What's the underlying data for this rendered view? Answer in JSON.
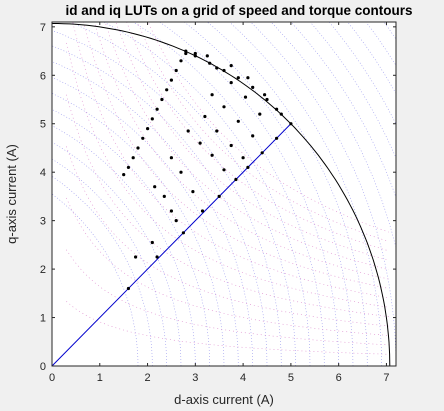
{
  "chart_data": {
    "type": "scatter",
    "title": "id and iq LUTs on a grid of speed and torque contours",
    "xlabel": "d-axis current (A)",
    "ylabel": "q-axis current (A)",
    "xlim": [
      0,
      7.2
    ],
    "ylim": [
      0,
      7.1
    ],
    "xticks": [
      "0",
      "1",
      "2",
      "3",
      "4",
      "5",
      "6",
      "7"
    ],
    "yticks": [
      "0",
      "1",
      "2",
      "3",
      "4",
      "5",
      "6",
      "7"
    ],
    "grid": false,
    "legend": "none",
    "current_limit_radius": 7.07,
    "mtpa_line": {
      "x": [
        0,
        5.0
      ],
      "y": [
        0,
        5.0
      ]
    },
    "speed_contour_center": [
      -2.6,
      0
    ],
    "lut_points": [
      [
        1.6,
        1.6
      ],
      [
        1.75,
        2.25
      ],
      [
        2.1,
        2.55
      ],
      [
        2.2,
        2.25
      ],
      [
        2.75,
        2.75
      ],
      [
        2.6,
        3.0
      ],
      [
        2.5,
        3.2
      ],
      [
        2.35,
        3.5
      ],
      [
        2.15,
        3.7
      ],
      [
        3.5,
        3.5
      ],
      [
        3.15,
        3.2
      ],
      [
        2.95,
        3.6
      ],
      [
        2.7,
        4.0
      ],
      [
        2.5,
        4.3
      ],
      [
        3.85,
        3.85
      ],
      [
        3.6,
        4.05
      ],
      [
        3.35,
        4.35
      ],
      [
        3.1,
        4.6
      ],
      [
        2.85,
        4.85
      ],
      [
        4.1,
        4.1
      ],
      [
        4.0,
        4.3
      ],
      [
        3.75,
        4.55
      ],
      [
        3.45,
        4.85
      ],
      [
        3.2,
        5.15
      ],
      [
        4.4,
        4.4
      ],
      [
        4.2,
        4.75
      ],
      [
        3.9,
        5.05
      ],
      [
        3.6,
        5.35
      ],
      [
        3.35,
        5.6
      ],
      [
        4.7,
        4.7
      ],
      [
        4.35,
        5.2
      ],
      [
        4.05,
        5.55
      ],
      [
        3.75,
        5.85
      ],
      [
        3.45,
        6.15
      ],
      [
        5.0,
        5.0
      ],
      [
        4.7,
        5.3
      ],
      [
        4.45,
        5.6
      ],
      [
        4.1,
        5.95
      ],
      [
        3.75,
        6.2
      ],
      [
        3.25,
        6.4
      ],
      [
        3.0,
        6.45
      ],
      [
        2.8,
        6.5
      ]
    ],
    "boundary_points": [
      [
        1.5,
        3.95
      ],
      [
        1.6,
        4.1
      ],
      [
        1.7,
        4.3
      ],
      [
        1.8,
        4.5
      ],
      [
        1.9,
        4.7
      ],
      [
        2.0,
        4.9
      ],
      [
        2.1,
        5.1
      ],
      [
        2.2,
        5.3
      ],
      [
        2.3,
        5.5
      ],
      [
        2.4,
        5.7
      ],
      [
        2.5,
        5.9
      ],
      [
        2.6,
        6.1
      ],
      [
        2.7,
        6.3
      ],
      [
        2.8,
        6.45
      ]
    ],
    "upper_circle_points": [
      [
        3.0,
        6.4
      ],
      [
        3.3,
        6.25
      ],
      [
        3.6,
        6.1
      ],
      [
        3.9,
        5.95
      ],
      [
        4.2,
        5.75
      ],
      [
        4.5,
        5.5
      ],
      [
        4.8,
        5.2
      ]
    ]
  },
  "colors": {
    "axes_bg": "#ffffff",
    "figure_bg": "#f0f0f0",
    "mtpa": "#0000cc",
    "circle": "#000000",
    "speed_contours": "#9999ee",
    "torque_contours": "#dd88cc",
    "markers": "#000000"
  }
}
